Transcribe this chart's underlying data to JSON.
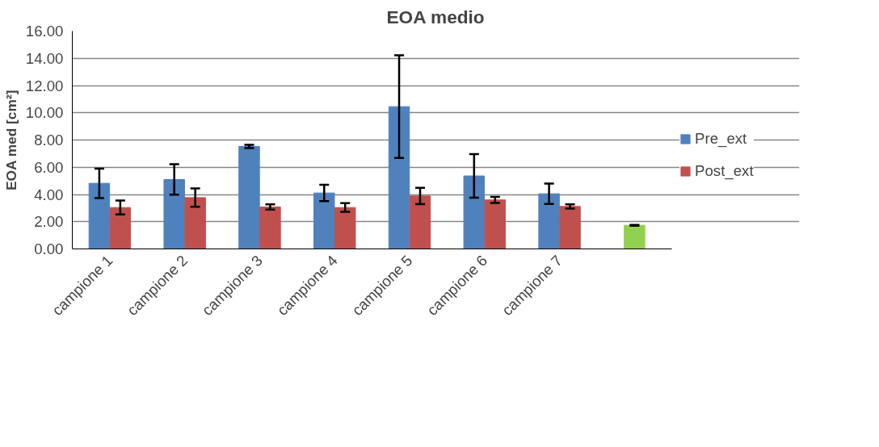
{
  "chart_data": {
    "type": "bar",
    "title": "EOA medio",
    "ylabel": "EOA med [cm²]",
    "categories": [
      "campione 1",
      "campione 2",
      "campione 3",
      "campione 4",
      "campione 5",
      "campione 6",
      "campione 7",
      null
    ],
    "series": [
      {
        "name": "Pre_ext",
        "color": "#4f81bd",
        "values": [
          4.82,
          5.1,
          7.53,
          4.11,
          10.45,
          5.36,
          4.05,
          null
        ],
        "errors": [
          1.08,
          1.12,
          0.12,
          0.6,
          3.77,
          1.6,
          0.75,
          null
        ]
      },
      {
        "name": "Post_ext",
        "color": "#c0504d",
        "values": [
          3.04,
          3.77,
          3.08,
          3.04,
          3.89,
          3.6,
          3.12,
          null
        ],
        "errors": [
          0.51,
          0.67,
          0.19,
          0.32,
          0.6,
          0.22,
          0.15,
          null
        ]
      },
      {
        "color": "#92d050",
        "values": [
          null,
          null,
          null,
          null,
          null,
          null,
          null,
          1.74
        ],
        "errors": [
          null,
          null,
          null,
          null,
          null,
          null,
          null,
          0.03
        ]
      }
    ],
    "ylim": [
      0,
      16
    ],
    "yticks": [
      {
        "value": 0,
        "label": "0.00"
      },
      {
        "value": 2,
        "label": "2.00"
      },
      {
        "value": 4,
        "label": "4.00"
      },
      {
        "value": 6,
        "label": "6.00"
      },
      {
        "value": 8,
        "label": "8.00"
      },
      {
        "value": 10,
        "label": "10.00"
      },
      {
        "value": 12,
        "label": "12.00"
      },
      {
        "value": 14,
        "label": "14.00"
      },
      {
        "value": 16,
        "label": "16.00"
      }
    ],
    "grid": "y",
    "legend": "right"
  }
}
